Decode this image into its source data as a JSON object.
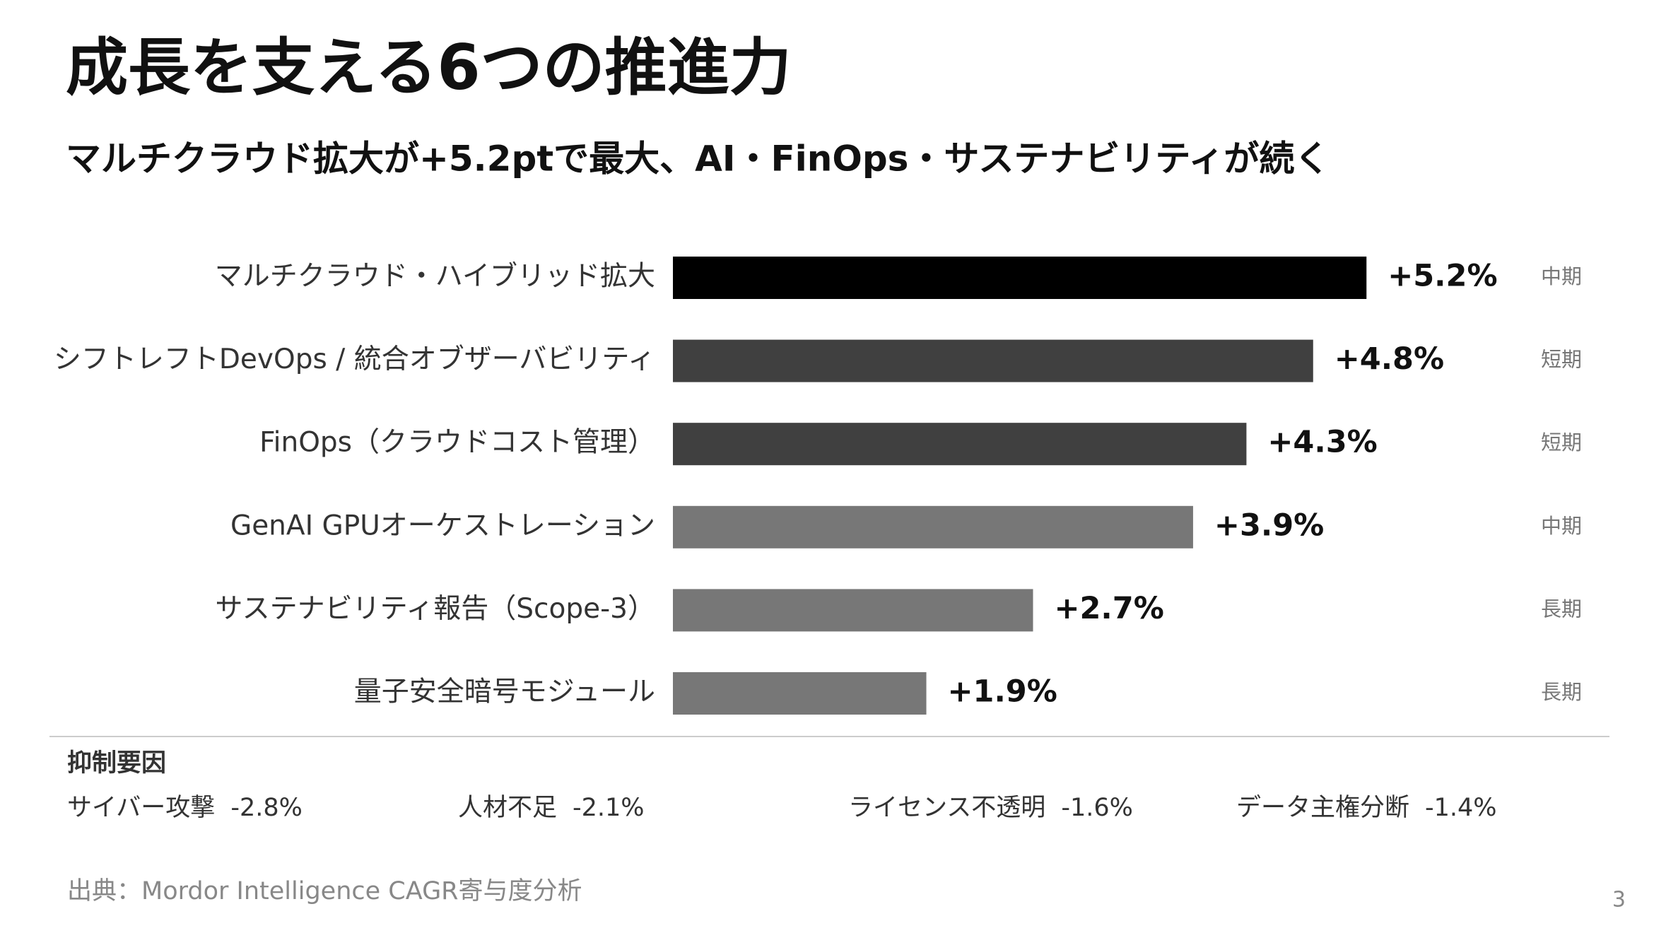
{
  "title": "成長を支える6つの推進力",
  "subtitle": "マルチクラウド拡大が+5.2ptで最大、AI・FinOps・サステナビリティが続く",
  "chart_data": {
    "type": "bar",
    "orientation": "horizontal",
    "categories": [
      "マルチクラウド・ハイブリッド拡大",
      "シフトレフトDevOps / 統合オブザーバビリティ",
      "FinOps（クラウドコスト管理）",
      "GenAI GPUオーケストレーション",
      "サステナビリティ報告（Scope-3）",
      "量子安全暗号モジュール"
    ],
    "values": [
      5.2,
      4.8,
      4.3,
      3.9,
      2.7,
      1.9
    ],
    "value_labels": [
      "+5.2%",
      "+4.8%",
      "+4.3%",
      "+3.9%",
      "+2.7%",
      "+1.9%"
    ],
    "colors": [
      "#000000",
      "#404040",
      "#404040",
      "#777777",
      "#777777",
      "#777777"
    ],
    "terms": [
      "中期",
      "短期",
      "短期",
      "中期",
      "長期",
      "長期"
    ]
  },
  "restraints": {
    "title": "抑制要因",
    "items": [
      {
        "name": "サイバー攻撃",
        "value": "-2.8%"
      },
      {
        "name": "人材不足",
        "value": "-2.1%"
      },
      {
        "name": "ライセンス不透明",
        "value": "-1.6%"
      },
      {
        "name": "データ主権分断",
        "value": "-1.4%"
      }
    ]
  },
  "source": "出典：Mordor Intelligence CAGR寄与度分析",
  "page_number": "3"
}
